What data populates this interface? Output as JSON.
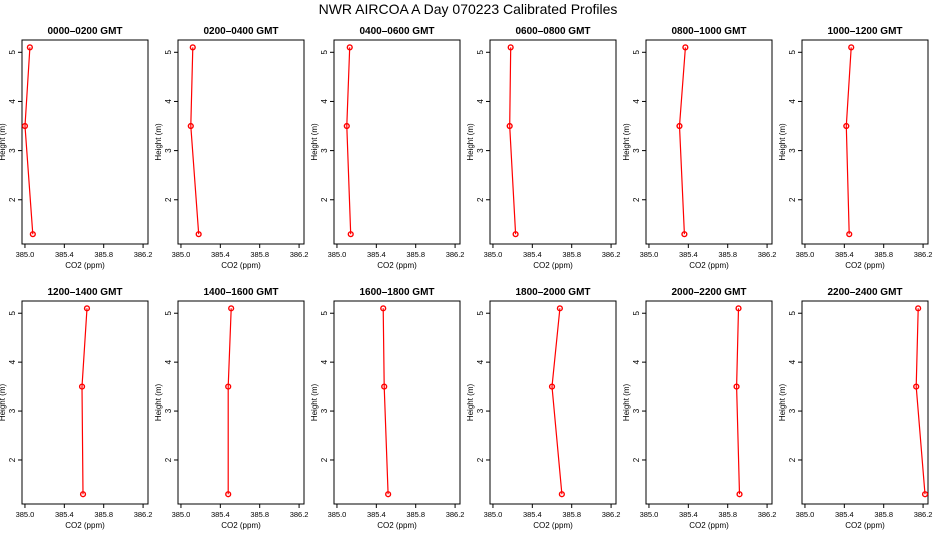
{
  "figure": {
    "title": "NWR AIRCOA A  Day 070223  Calibrated Profiles"
  },
  "chart_data": [
    {
      "type": "line",
      "title": "0000–0200 GMT",
      "xlabel": "CO2 (ppm)",
      "ylabel": "Height (m)",
      "xlim": [
        384.97,
        386.25
      ],
      "ylim": [
        1.1,
        5.25
      ],
      "xticks": [
        "385.0",
        "385.4",
        "385.8",
        "386.2"
      ],
      "yticks": [
        "2",
        "3",
        "4",
        "5"
      ],
      "series": [
        {
          "color": "#ff0000",
          "points": [
            {
              "x": 385.05,
              "y": 5.1
            },
            {
              "x": 385.0,
              "y": 3.5
            },
            {
              "x": 385.08,
              "y": 1.3
            }
          ]
        }
      ]
    },
    {
      "type": "line",
      "title": "0200–0400 GMT",
      "xlabel": "CO2 (ppm)",
      "ylabel": "Height (m)",
      "xlim": [
        384.97,
        386.25
      ],
      "ylim": [
        1.1,
        5.25
      ],
      "xticks": [
        "385.0",
        "385.4",
        "385.8",
        "386.2"
      ],
      "yticks": [
        "2",
        "3",
        "4",
        "5"
      ],
      "series": [
        {
          "color": "#ff0000",
          "points": [
            {
              "x": 385.12,
              "y": 5.1
            },
            {
              "x": 385.1,
              "y": 3.5
            },
            {
              "x": 385.18,
              "y": 1.3
            }
          ]
        }
      ]
    },
    {
      "type": "line",
      "title": "0400–0600 GMT",
      "xlabel": "CO2 (ppm)",
      "ylabel": "Height (m)",
      "xlim": [
        384.97,
        386.25
      ],
      "ylim": [
        1.1,
        5.25
      ],
      "xticks": [
        "385.0",
        "385.4",
        "385.8",
        "386.2"
      ],
      "yticks": [
        "2",
        "3",
        "4",
        "5"
      ],
      "series": [
        {
          "color": "#ff0000",
          "points": [
            {
              "x": 385.13,
              "y": 5.1
            },
            {
              "x": 385.1,
              "y": 3.5
            },
            {
              "x": 385.14,
              "y": 1.3
            }
          ]
        }
      ]
    },
    {
      "type": "line",
      "title": "0600–0800 GMT",
      "xlabel": "CO2 (ppm)",
      "ylabel": "Height (m)",
      "xlim": [
        384.97,
        386.25
      ],
      "ylim": [
        1.1,
        5.25
      ],
      "xticks": [
        "385.0",
        "385.4",
        "385.8",
        "386.2"
      ],
      "yticks": [
        "2",
        "3",
        "4",
        "5"
      ],
      "series": [
        {
          "color": "#ff0000",
          "points": [
            {
              "x": 385.18,
              "y": 5.1
            },
            {
              "x": 385.17,
              "y": 3.5
            },
            {
              "x": 385.23,
              "y": 1.3
            }
          ]
        }
      ]
    },
    {
      "type": "line",
      "title": "0800–1000 GMT",
      "xlabel": "CO2 (ppm)",
      "ylabel": "Height (m)",
      "xlim": [
        384.97,
        386.25
      ],
      "ylim": [
        1.1,
        5.25
      ],
      "xticks": [
        "385.0",
        "385.4",
        "385.8",
        "386.2"
      ],
      "yticks": [
        "2",
        "3",
        "4",
        "5"
      ],
      "series": [
        {
          "color": "#ff0000",
          "points": [
            {
              "x": 385.37,
              "y": 5.1
            },
            {
              "x": 385.31,
              "y": 3.5
            },
            {
              "x": 385.36,
              "y": 1.3
            }
          ]
        }
      ]
    },
    {
      "type": "line",
      "title": "1000–1200 GMT",
      "xlabel": "CO2 (ppm)",
      "ylabel": "Height (m)",
      "xlim": [
        384.97,
        386.25
      ],
      "ylim": [
        1.1,
        5.25
      ],
      "xticks": [
        "385.0",
        "385.4",
        "385.8",
        "386.2"
      ],
      "yticks": [
        "2",
        "3",
        "4",
        "5"
      ],
      "series": [
        {
          "color": "#ff0000",
          "points": [
            {
              "x": 385.47,
              "y": 5.1
            },
            {
              "x": 385.42,
              "y": 3.5
            },
            {
              "x": 385.45,
              "y": 1.3
            }
          ]
        }
      ]
    },
    {
      "type": "line",
      "title": "1200–1400 GMT",
      "xlabel": "CO2 (ppm)",
      "ylabel": "Height (m)",
      "xlim": [
        384.97,
        386.25
      ],
      "ylim": [
        1.1,
        5.25
      ],
      "xticks": [
        "385.0",
        "385.4",
        "385.8",
        "386.2"
      ],
      "yticks": [
        "2",
        "3",
        "4",
        "5"
      ],
      "series": [
        {
          "color": "#ff0000",
          "points": [
            {
              "x": 385.63,
              "y": 5.1
            },
            {
              "x": 385.58,
              "y": 3.5
            },
            {
              "x": 385.59,
              "y": 1.3
            }
          ]
        }
      ]
    },
    {
      "type": "line",
      "title": "1400–1600 GMT",
      "xlabel": "CO2 (ppm)",
      "ylabel": "Height (m)",
      "xlim": [
        384.97,
        386.25
      ],
      "ylim": [
        1.1,
        5.25
      ],
      "xticks": [
        "385.0",
        "385.4",
        "385.8",
        "386.2"
      ],
      "yticks": [
        "2",
        "3",
        "4",
        "5"
      ],
      "series": [
        {
          "color": "#ff0000",
          "points": [
            {
              "x": 385.51,
              "y": 5.1
            },
            {
              "x": 385.48,
              "y": 3.5
            },
            {
              "x": 385.48,
              "y": 1.3
            }
          ]
        }
      ]
    },
    {
      "type": "line",
      "title": "1600–1800 GMT",
      "xlabel": "CO2 (ppm)",
      "ylabel": "Height (m)",
      "xlim": [
        384.97,
        386.25
      ],
      "ylim": [
        1.1,
        5.25
      ],
      "xticks": [
        "385.0",
        "385.4",
        "385.8",
        "386.2"
      ],
      "yticks": [
        "2",
        "3",
        "4",
        "5"
      ],
      "series": [
        {
          "color": "#ff0000",
          "points": [
            {
              "x": 385.47,
              "y": 5.1
            },
            {
              "x": 385.48,
              "y": 3.5
            },
            {
              "x": 385.52,
              "y": 1.3
            }
          ]
        }
      ]
    },
    {
      "type": "line",
      "title": "1800–2000 GMT",
      "xlabel": "CO2 (ppm)",
      "ylabel": "Height (m)",
      "xlim": [
        384.97,
        386.25
      ],
      "ylim": [
        1.1,
        5.25
      ],
      "xticks": [
        "385.0",
        "385.4",
        "385.8",
        "386.2"
      ],
      "yticks": [
        "2",
        "3",
        "4",
        "5"
      ],
      "series": [
        {
          "color": "#ff0000",
          "points": [
            {
              "x": 385.68,
              "y": 5.1
            },
            {
              "x": 385.6,
              "y": 3.5
            },
            {
              "x": 385.7,
              "y": 1.3
            }
          ]
        }
      ]
    },
    {
      "type": "line",
      "title": "2000–2200 GMT",
      "xlabel": "CO2 (ppm)",
      "ylabel": "Height (m)",
      "xlim": [
        384.97,
        386.25
      ],
      "ylim": [
        1.1,
        5.25
      ],
      "xticks": [
        "385.0",
        "385.4",
        "385.8",
        "386.2"
      ],
      "yticks": [
        "2",
        "3",
        "4",
        "5"
      ],
      "series": [
        {
          "color": "#ff0000",
          "points": [
            {
              "x": 385.91,
              "y": 5.1
            },
            {
              "x": 385.89,
              "y": 3.5
            },
            {
              "x": 385.92,
              "y": 1.3
            }
          ]
        }
      ]
    },
    {
      "type": "line",
      "title": "2200–2400 GMT",
      "xlabel": "CO2 (ppm)",
      "ylabel": "Height (m)",
      "xlim": [
        384.97,
        386.25
      ],
      "ylim": [
        1.1,
        5.25
      ],
      "xticks": [
        "385.0",
        "385.4",
        "385.8",
        "386.2"
      ],
      "yticks": [
        "2",
        "3",
        "4",
        "5"
      ],
      "series": [
        {
          "color": "#ff0000",
          "points": [
            {
              "x": 386.15,
              "y": 5.1
            },
            {
              "x": 386.13,
              "y": 3.5
            },
            {
              "x": 386.22,
              "y": 1.3
            }
          ]
        }
      ]
    }
  ]
}
